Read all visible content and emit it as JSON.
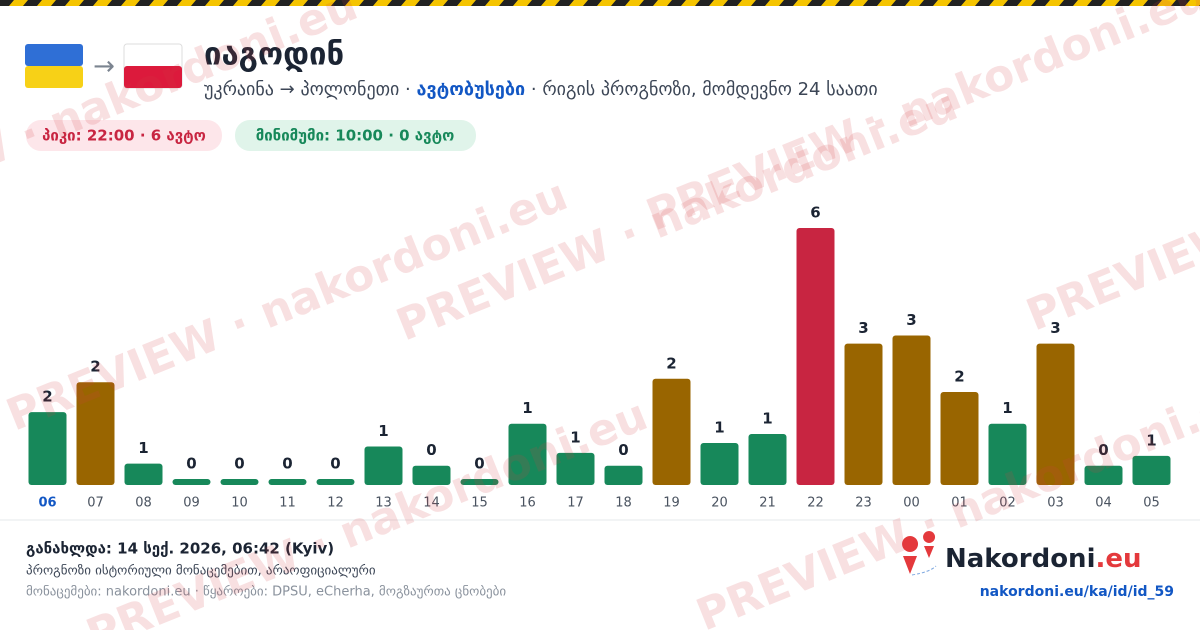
{
  "header": {
    "title": "იაგოდინ",
    "route": "უკრაინა → პოლონეთი · ",
    "mode": "ავტობუსები",
    "subtitle_rest": " · რიგის პროგნოზი, მომდევნო 24 საათი",
    "peak": "პიკი: 22:00 · 6 ავტო",
    "minimum": "მინიმუმი: 10:00 · 0 ავტო"
  },
  "chart_data": {
    "type": "bar",
    "categories": [
      "06",
      "07",
      "08",
      "09",
      "10",
      "11",
      "12",
      "13",
      "14",
      "15",
      "16",
      "17",
      "18",
      "19",
      "20",
      "21",
      "22",
      "23",
      "00",
      "01",
      "02",
      "03",
      "04",
      "05"
    ],
    "values": [
      1.7,
      2.4,
      0.5,
      0.14,
      0.14,
      0.14,
      0.14,
      0.9,
      0.45,
      0.14,
      1.43,
      0.75,
      0.45,
      2.48,
      0.98,
      1.19,
      6,
      3.3,
      3.49,
      2.17,
      1.43,
      3.3,
      0.45,
      0.68
    ],
    "value_labels": [
      "2",
      "2",
      "1",
      "0",
      "0",
      "0",
      "0",
      "1",
      "0",
      "0",
      "1",
      "1",
      "0",
      "2",
      "1",
      "1",
      "6",
      "3",
      "3",
      "2",
      "1",
      "3",
      "0",
      "1"
    ],
    "colors": [
      "#17885a",
      "#996500",
      "#17885a",
      "#17885a",
      "#17885a",
      "#17885a",
      "#17885a",
      "#17885a",
      "#17885a",
      "#17885a",
      "#17885a",
      "#17885a",
      "#17885a",
      "#996500",
      "#17885a",
      "#17885a",
      "#c82541",
      "#996500",
      "#996500",
      "#996500",
      "#17885a",
      "#996500",
      "#17885a",
      "#17885a"
    ]
  },
  "footer": {
    "updated": "განახლდა: 14 სექ. 2026, 06:42 (Kyiv)",
    "note": "პროგნოზი ისტორიული მონაცემებით, არაოფიციალური",
    "sources": "მონაცემები: nakordoni.eu · წყაროები: DPSU, eCherha, მოგზაურთა ცნობები",
    "logo_main": "Nakordoni",
    "logo_tld": ".eu",
    "url": "nakordoni.eu/ka/id/id_59"
  },
  "watermark": "PREVIEW · nakordoni.eu"
}
